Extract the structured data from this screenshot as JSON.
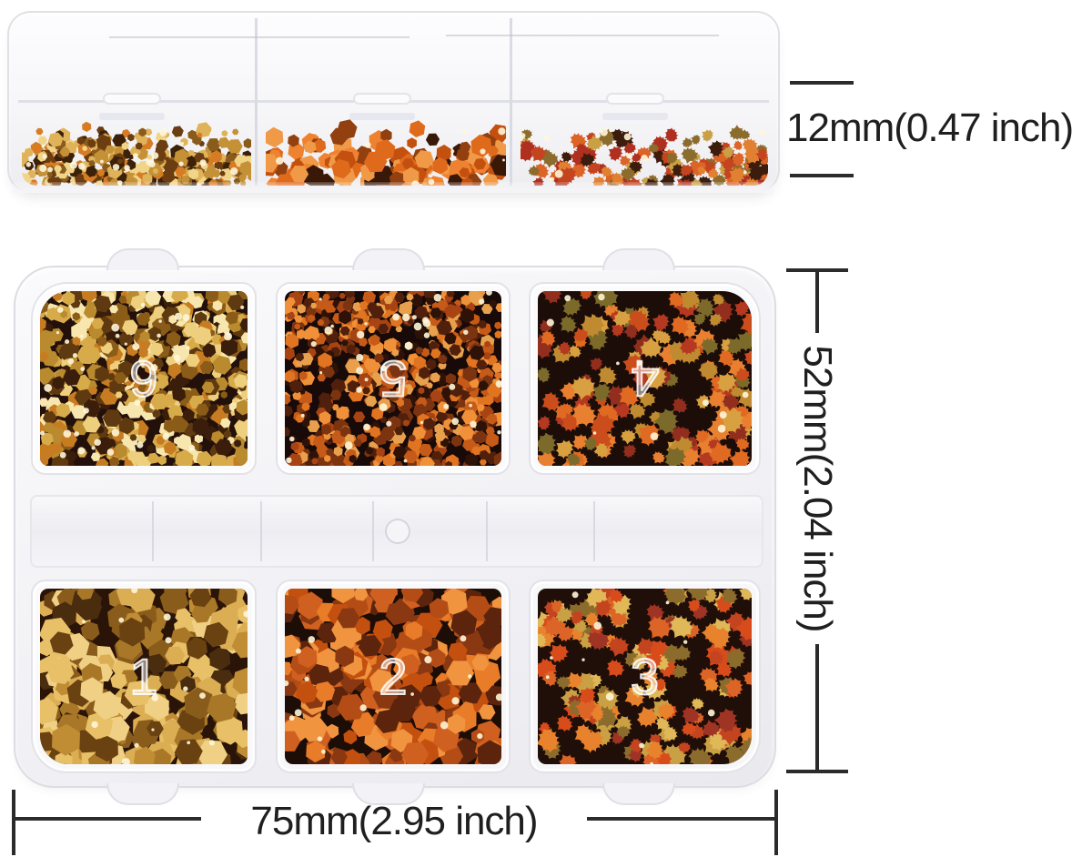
{
  "annotations": {
    "depth_label": "12mm(0.47 inch)",
    "height_label": "52mm(2.04 inch)",
    "width_label": "75mm(2.95 inch)",
    "line_color": "#2b2b2b",
    "text_color": "#1f1f1f"
  },
  "box": {
    "plastic_color": "#f3f3f6",
    "compartments": [
      {
        "number": "6",
        "content": "gold chunky hexagon glitter",
        "shape": "hexagon",
        "base": "#23100a",
        "colors": [
          "#b98a2e",
          "#d8ab4a",
          "#edcf7d",
          "#f7e7ae",
          "#8a5c18",
          "#5f3a10",
          "#c87c22",
          "#3a1d0a"
        ],
        "count": 520,
        "min": 4,
        "max": 11
      },
      {
        "number": "5",
        "content": "burnt orange hexagon glitter",
        "shape": "hexagon",
        "base": "#170a08",
        "colors": [
          "#a84414",
          "#c65a18",
          "#e07420",
          "#f09038",
          "#7c3410",
          "#50200c",
          "#e8a04c",
          "#2e1208"
        ],
        "count": 560,
        "min": 3.5,
        "max": 9
      },
      {
        "number": "4",
        "content": "red maple leaf sequins",
        "shape": "maple-leaf",
        "base": "#1c0d09",
        "colors": [
          "#b43920",
          "#cc4d1c",
          "#e06a22",
          "#c08a30",
          "#d8a040",
          "#922e1e",
          "#e88030",
          "#7c6a2a"
        ],
        "count": 150,
        "min": 7,
        "max": 14
      },
      {
        "number": "1",
        "content": "large gold hexagon sequins",
        "shape": "hexagon",
        "base": "#2a1408",
        "colors": [
          "#c08c34",
          "#dcae54",
          "#f0d084",
          "#8a5c1c",
          "#6a4212",
          "#e8c068",
          "#4a2c0e",
          "#a87828"
        ],
        "count": 210,
        "min": 9,
        "max": 18
      },
      {
        "number": "2",
        "content": "copper orange hexagon sequins",
        "shape": "hexagon",
        "base": "#1d0d07",
        "colors": [
          "#b44c16",
          "#d06020",
          "#e87c28",
          "#8a3812",
          "#f09440",
          "#5c240c",
          "#c4500f"
        ],
        "count": 240,
        "min": 8,
        "max": 16
      },
      {
        "number": "3",
        "content": "autumn maple leaf sequins",
        "shape": "maple-leaf",
        "base": "#200e08",
        "colors": [
          "#c44420",
          "#dc6426",
          "#e8822c",
          "#caa044",
          "#e0b858",
          "#a03424",
          "#8c6c2c",
          "#d84c1c"
        ],
        "count": 160,
        "min": 7,
        "max": 14
      }
    ],
    "side_view_cells": [
      {
        "content": "gold flake glitter",
        "shape": "hexagon",
        "base": "",
        "pile": true,
        "colors": [
          "#c59136",
          "#e0b35a",
          "#8a5c1c",
          "#3c2008",
          "#f0d488",
          "#6b3d10",
          "#d87c24"
        ],
        "count": 300,
        "min": 3,
        "max": 9
      },
      {
        "content": "orange hexagon glitter",
        "shape": "hexagon",
        "base": "",
        "pile": true,
        "colors": [
          "#e06a1c",
          "#ee8230",
          "#c4500f",
          "#3a1808",
          "#92400f",
          "#f09a48"
        ],
        "count": 130,
        "min": 6,
        "max": 13
      },
      {
        "content": "maple leaf sequins",
        "shape": "maple-leaf",
        "base": "",
        "pile": true,
        "colors": [
          "#c44420",
          "#dc6426",
          "#caa044",
          "#3c1c0c",
          "#e08030",
          "#8c6c2c",
          "#b03020"
        ],
        "count": 130,
        "min": 5,
        "max": 10
      }
    ]
  }
}
